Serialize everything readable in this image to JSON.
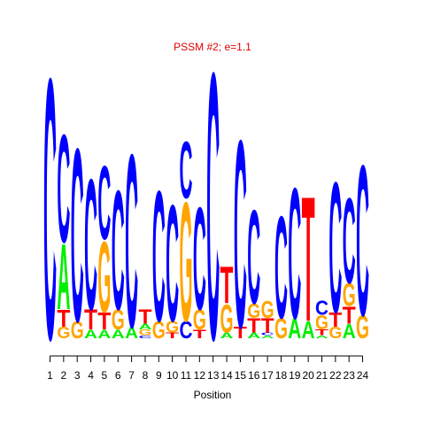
{
  "chart_data": {
    "type": "sequence-logo",
    "title": "PSSM #2; e=1.1",
    "xlabel": "Position",
    "ylabel": "",
    "positions": [
      1,
      2,
      3,
      4,
      5,
      6,
      7,
      8,
      9,
      10,
      11,
      12,
      13,
      14,
      15,
      16,
      17,
      18,
      19,
      20,
      21,
      22,
      23,
      24
    ],
    "ylim": [
      0,
      1
    ],
    "colors": {
      "A": "#00ee00",
      "C": "#0000ff",
      "G": "#ffa500",
      "T": "#ff0000"
    },
    "columns": [
      {
        "position": 1,
        "letters": [
          {
            "base": "C",
            "height": 0.92
          }
        ]
      },
      {
        "position": 2,
        "letters": [
          {
            "base": "G",
            "height": 0.04
          },
          {
            "base": "T",
            "height": 0.06
          },
          {
            "base": "A",
            "height": 0.23
          },
          {
            "base": "C",
            "height": 0.38
          }
        ]
      },
      {
        "position": 3,
        "letters": [
          {
            "base": "G",
            "height": 0.06
          },
          {
            "base": "C",
            "height": 0.61
          }
        ]
      },
      {
        "position": 4,
        "letters": [
          {
            "base": "A",
            "height": 0.03
          },
          {
            "base": "T",
            "height": 0.07
          },
          {
            "base": "C",
            "height": 0.46
          }
        ]
      },
      {
        "position": 5,
        "letters": [
          {
            "base": "A",
            "height": 0.03
          },
          {
            "base": "T",
            "height": 0.06
          },
          {
            "base": "G",
            "height": 0.25
          },
          {
            "base": "C",
            "height": 0.26
          }
        ]
      },
      {
        "position": 6,
        "letters": [
          {
            "base": "A",
            "height": 0.03
          },
          {
            "base": "G",
            "height": 0.07
          },
          {
            "base": "C",
            "height": 0.42
          }
        ]
      },
      {
        "position": 7,
        "letters": [
          {
            "base": "A",
            "height": 0.04
          },
          {
            "base": "C",
            "height": 0.61
          }
        ]
      },
      {
        "position": 8,
        "letters": [
          {
            "base": "C",
            "height": 0.01
          },
          {
            "base": "G",
            "height": 0.02
          },
          {
            "base": "A",
            "height": 0.02
          },
          {
            "base": "T",
            "height": 0.05
          }
        ]
      },
      {
        "position": 9,
        "letters": [
          {
            "base": "G",
            "height": 0.06
          },
          {
            "base": "C",
            "height": 0.46
          }
        ]
      },
      {
        "position": 10,
        "letters": [
          {
            "base": "T",
            "height": 0.02
          },
          {
            "base": "G",
            "height": 0.04
          },
          {
            "base": "C",
            "height": 0.41
          }
        ]
      },
      {
        "position": 11,
        "letters": [
          {
            "base": "C",
            "height": 0.06
          },
          {
            "base": "G",
            "height": 0.42
          },
          {
            "base": "C",
            "height": 0.2
          }
        ]
      },
      {
        "position": 12,
        "letters": [
          {
            "base": "T",
            "height": 0.03
          },
          {
            "base": "G",
            "height": 0.07
          },
          {
            "base": "C",
            "height": 0.36
          }
        ]
      },
      {
        "position": 13,
        "letters": [
          {
            "base": "C",
            "height": 0.94
          }
        ]
      },
      {
        "position": 14,
        "letters": [
          {
            "base": "A",
            "height": 0.02
          },
          {
            "base": "G",
            "height": 0.1
          },
          {
            "base": "T",
            "height": 0.13
          }
        ]
      },
      {
        "position": 15,
        "letters": [
          {
            "base": "T",
            "height": 0.04
          },
          {
            "base": "C",
            "height": 0.66
          }
        ]
      },
      {
        "position": 16,
        "letters": [
          {
            "base": "A",
            "height": 0.02
          },
          {
            "base": "T",
            "height": 0.05
          },
          {
            "base": "G",
            "height": 0.05
          },
          {
            "base": "C",
            "height": 0.33
          }
        ]
      },
      {
        "position": 17,
        "letters": [
          {
            "base": "A",
            "height": 0.01
          },
          {
            "base": "C",
            "height": 0.01
          },
          {
            "base": "T",
            "height": 0.05
          },
          {
            "base": "G",
            "height": 0.06
          }
        ]
      },
      {
        "position": 18,
        "letters": [
          {
            "base": "G",
            "height": 0.07
          },
          {
            "base": "C",
            "height": 0.36
          }
        ]
      },
      {
        "position": 19,
        "letters": [
          {
            "base": "A",
            "height": 0.07
          },
          {
            "base": "C",
            "height": 0.46
          }
        ]
      },
      {
        "position": 20,
        "letters": [
          {
            "base": "A",
            "height": 0.06
          },
          {
            "base": "T",
            "height": 0.44
          }
        ]
      },
      {
        "position": 21,
        "letters": [
          {
            "base": "A",
            "height": 0.01
          },
          {
            "base": "T",
            "height": 0.02
          },
          {
            "base": "G",
            "height": 0.05
          },
          {
            "base": "C",
            "height": 0.05
          }
        ]
      },
      {
        "position": 22,
        "letters": [
          {
            "base": "G",
            "height": 0.04
          },
          {
            "base": "T",
            "height": 0.05
          },
          {
            "base": "C",
            "height": 0.46
          }
        ]
      },
      {
        "position": 23,
        "letters": [
          {
            "base": "A",
            "height": 0.05
          },
          {
            "base": "T",
            "height": 0.06
          },
          {
            "base": "G",
            "height": 0.08
          },
          {
            "base": "C",
            "height": 0.3
          }
        ]
      },
      {
        "position": 24,
        "letters": [
          {
            "base": "G",
            "height": 0.08
          },
          {
            "base": "C",
            "height": 0.53
          }
        ]
      }
    ]
  }
}
